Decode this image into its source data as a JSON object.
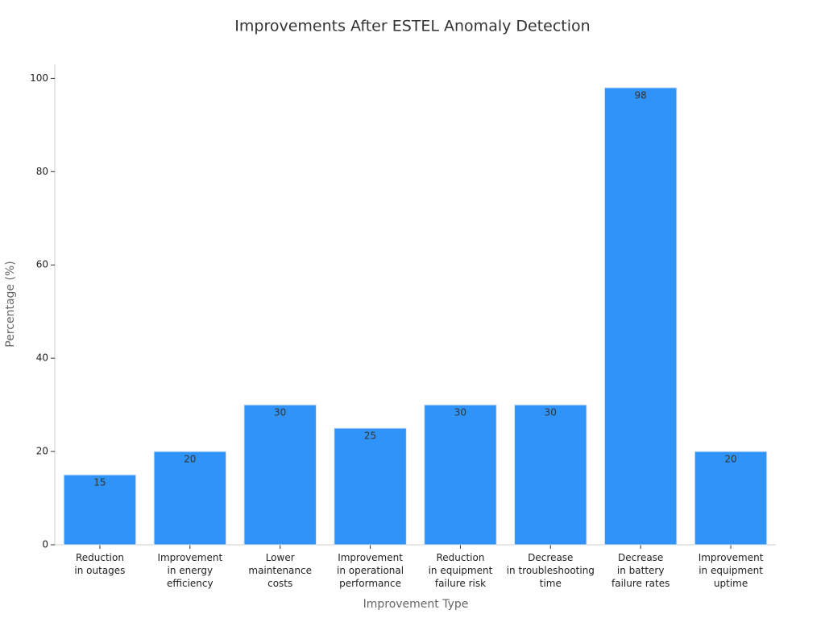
{
  "chart_data": {
    "type": "bar",
    "title": "Improvements After ESTEL Anomaly Detection",
    "x_label": "Improvement Type",
    "y_label": "Percentage (%)",
    "categories": [
      "Reduction\nin outages",
      "Improvement\nin energy\nefficiency",
      "Lower\nmaintenance\ncosts",
      "Improvement\nin operational\nperformance",
      "Reduction\nin equipment\nfailure risk",
      "Decrease\nin troubleshooting\ntime",
      "Decrease\nin battery\nfailure rates",
      "Improvement\nin equipment\nuptime"
    ],
    "values": [
      15,
      20,
      30,
      25,
      30,
      30,
      98,
      20
    ],
    "color": "#3093f7",
    "ylim": [
      0,
      103
    ],
    "yticks": [
      0,
      20,
      40,
      60,
      80,
      100
    ],
    "grid": false
  }
}
